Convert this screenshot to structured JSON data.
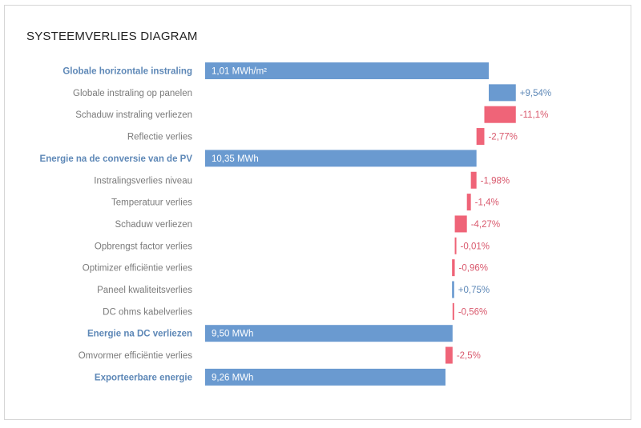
{
  "chart_data": {
    "type": "bar",
    "subtype": "waterfall-horizontal",
    "title": "SYSTEEMVERLIES DIAGRAM",
    "colors": {
      "total": "#6a9ad0",
      "gain": "#6a9ad0",
      "loss": "#ef6478",
      "total_label": "#5e88b7",
      "loss_label": "#d9596d"
    },
    "rows": [
      {
        "label": "Globale horizontale instraling",
        "kind": "total",
        "value": 1.01,
        "value_label": "1,01 MWh/m²"
      },
      {
        "label": "Globale instraling op panelen",
        "kind": "delta",
        "percent": 9.54,
        "value_label": "+9,54%"
      },
      {
        "label": "Schaduw instraling verliezen",
        "kind": "delta",
        "percent": -11.1,
        "value_label": "-11,1%"
      },
      {
        "label": "Reflectie verlies",
        "kind": "delta",
        "percent": -2.77,
        "value_label": "-2,77%"
      },
      {
        "label": "Energie na de conversie van de PV",
        "kind": "total",
        "value": 10.35,
        "value_label": "10,35 MWh"
      },
      {
        "label": "Instralingsverlies niveau",
        "kind": "delta",
        "percent": -1.98,
        "value_label": "-1,98%"
      },
      {
        "label": "Temperatuur verlies",
        "kind": "delta",
        "percent": -1.4,
        "value_label": "-1,4%"
      },
      {
        "label": "Schaduw verliezen",
        "kind": "delta",
        "percent": -4.27,
        "value_label": "-4,27%"
      },
      {
        "label": "Opbrengst factor verlies",
        "kind": "delta",
        "percent": -0.01,
        "value_label": "-0,01%"
      },
      {
        "label": "Optimizer efficiëntie verlies",
        "kind": "delta",
        "percent": -0.96,
        "value_label": "-0,96%"
      },
      {
        "label": "Paneel kwaliteitsverlies",
        "kind": "delta",
        "percent": 0.75,
        "value_label": "+0,75%"
      },
      {
        "label": "DC ohms kabelverlies",
        "kind": "delta",
        "percent": -0.56,
        "value_label": "-0,56%"
      },
      {
        "label": "Energie na DC verliezen",
        "kind": "total",
        "value": 9.5,
        "value_label": "9,50 MWh"
      },
      {
        "label": "Omvormer efficiëntie verlies",
        "kind": "delta",
        "percent": -2.5,
        "value_label": "-2,5%"
      },
      {
        "label": "Exporteerbare energie",
        "kind": "total",
        "value": 9.26,
        "value_label": "9,26 MWh"
      }
    ]
  }
}
